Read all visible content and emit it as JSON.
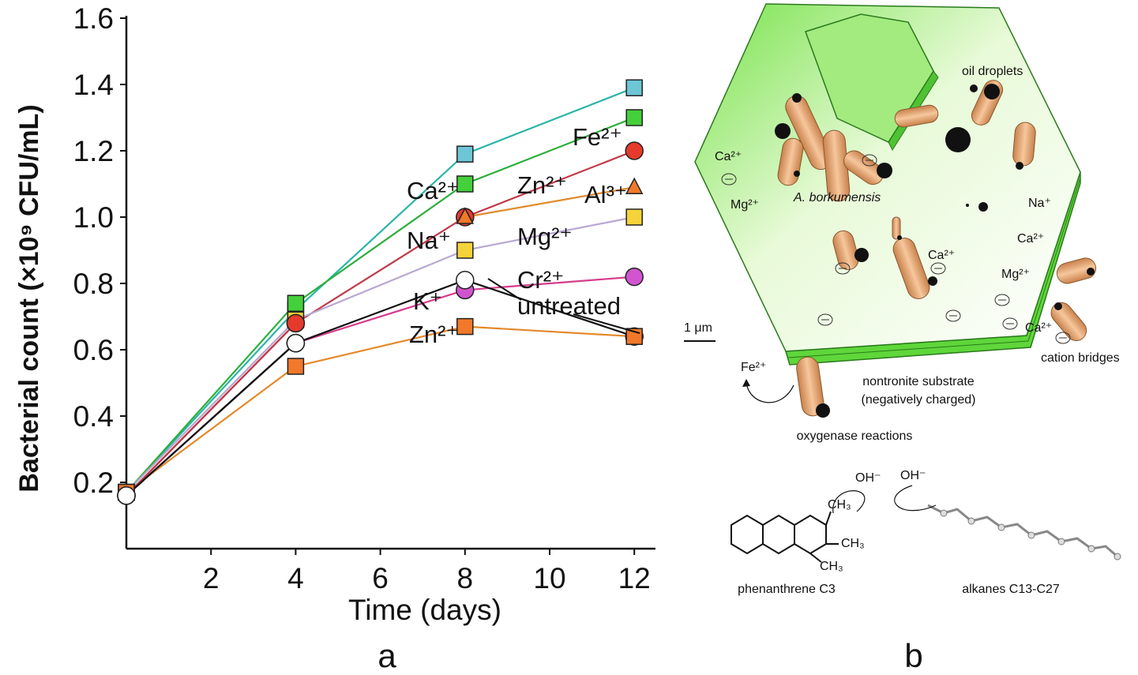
{
  "chart_data": [
    {
      "type": "line",
      "panel_label": "a",
      "xlabel": "Time (days)",
      "ylabel": "Bacterial count (×10⁹ CFU/mL)",
      "xlim": [
        0,
        12
      ],
      "ylim": [
        0,
        1.6
      ],
      "xticks": [
        "2",
        "4",
        "6",
        "8",
        "10",
        "12"
      ],
      "yticks": [
        "0.2",
        "0.4",
        "0.6",
        "0.8",
        "1.0",
        "1.2",
        "1.4",
        "1.6"
      ],
      "x": [
        0,
        4,
        8,
        12
      ],
      "series": [
        {
          "name": "Ca²⁺",
          "color": "#2bb5a8",
          "marker": "square",
          "fill": "#6cc6d6",
          "values": [
            0.17,
            0.72,
            1.19,
            1.39
          ]
        },
        {
          "name": "Fe²⁺",
          "color": "#2dae3c",
          "marker": "square",
          "fill": "#44d03a",
          "values": [
            0.17,
            0.74,
            1.1,
            1.3
          ]
        },
        {
          "name": "Zn²⁺",
          "color": "#c0394a",
          "marker": "circle",
          "fill": "#e53a2c",
          "values": [
            0.16,
            0.68,
            1.0,
            1.2
          ]
        },
        {
          "name": "Al³⁺",
          "color": "#e08a2c",
          "marker": "triangle",
          "fill": "#f07a2a",
          "values": [
            null,
            null,
            1.0,
            1.09
          ]
        },
        {
          "name": "Mg²⁺",
          "color": "#b8a8d0",
          "marker": "square",
          "fill": "#f5d33a",
          "values": [
            0.17,
            0.69,
            0.9,
            1.0
          ]
        },
        {
          "name": "Cr²⁺",
          "color": "#d63c8c",
          "marker": "circle",
          "fill": "#d255cf",
          "values": [
            0.16,
            0.62,
            0.78,
            0.82
          ]
        },
        {
          "name": "untreated",
          "color": "#111111",
          "marker": "circle",
          "fill": "#ffffff",
          "values": [
            0.16,
            0.62,
            0.81,
            0.64
          ]
        },
        {
          "name": "Zn²⁺",
          "color": "#e5892c",
          "marker": "square",
          "fill": "#f2782a",
          "values": [
            0.17,
            0.55,
            0.67,
            0.64
          ]
        },
        {
          "name": "Na⁺",
          "color": "#c0394a",
          "marker": "circle",
          "fill": "#e53a2c",
          "values": [
            0.16,
            0.68,
            null,
            null
          ]
        },
        {
          "name": "K⁺",
          "color": "#111111",
          "marker": "circle",
          "fill": "#ffffff",
          "values": [
            0.16,
            0.62,
            null,
            null
          ]
        }
      ],
      "series_labels": [
        "Ca²⁺",
        "Fe²⁺",
        "Zn²⁺",
        "Al³⁺",
        "Na⁺",
        "Mg²⁺",
        "Cr²⁺",
        "K⁺",
        "untreated",
        "Zn²⁺"
      ]
    }
  ],
  "diagram": {
    "panel_label": "b",
    "labels": {
      "oil_droplets": "oil droplets",
      "species": "A. borkumensis",
      "ca_left": "Ca²⁺",
      "mg_left": "Mg²⁺",
      "na_right": "Na⁺",
      "ca_right": "Ca²⁺",
      "ca_center": "Ca²⁺",
      "mg_right": "Mg²⁺",
      "ca_edge": "Ca²⁺",
      "scale": "1 μm",
      "cation_bridges": "cation bridges",
      "substrate_line1": "nontronite substrate",
      "substrate_line2": "(negatively charged)",
      "fe": "Fe²⁺",
      "oxygenase": "oxygenase reactions",
      "oh1": "OH⁻",
      "oh2": "OH⁻",
      "phenanthrene": "phenanthrene C3",
      "alkanes": "alkanes C13-C27",
      "ch3": "CH₃",
      "minus": "⊖"
    }
  }
}
